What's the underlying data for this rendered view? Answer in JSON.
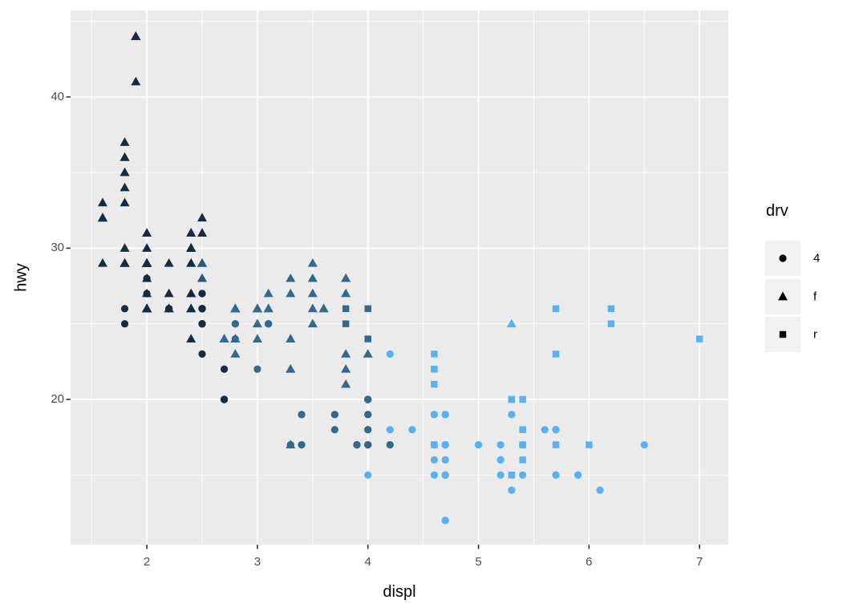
{
  "figure": {
    "background": "#FFFFFF",
    "panel_background": "#EBEBEB",
    "grid_color": "#FFFFFF",
    "tick_mark_color": "#333333",
    "axis_text_color": "#4D4D4D",
    "axis_title_color": "#000000",
    "legend_key_background": "#F2F2F2",
    "legend_glyph_color": "#000000"
  },
  "axes": {
    "x": {
      "title": "displ",
      "major_ticks": [
        "2",
        "3",
        "4",
        "5",
        "6",
        "7"
      ],
      "major_values": [
        2,
        3,
        4,
        5,
        6,
        7
      ],
      "minor_values": [
        1.5,
        2.5,
        3.5,
        4.5,
        5.5,
        6.5
      ]
    },
    "y": {
      "title": "hwy",
      "major_ticks": [
        "20",
        "30",
        "40"
      ],
      "major_values": [
        20,
        30,
        40
      ],
      "minor_values": [
        15,
        25,
        35,
        45
      ]
    }
  },
  "legend": {
    "title": "drv",
    "items": [
      {
        "label": "4",
        "shape": "circle"
      },
      {
        "label": "f",
        "shape": "triangle"
      },
      {
        "label": "r",
        "shape": "square"
      }
    ]
  },
  "chart_data": {
    "type": "scatter",
    "title": "",
    "xlabel": "displ",
    "ylabel": "hwy",
    "x_range": [
      1.31,
      7.26
    ],
    "y_range": [
      10.4,
      45.72
    ],
    "x_breaks": [
      2,
      3,
      4,
      5,
      6,
      7
    ],
    "y_breaks": [
      20,
      30,
      40
    ],
    "grid": true,
    "legend_position": "right",
    "point_format": "[displ, hwy, cyl]",
    "shape_mapping": {
      "variable": "drv",
      "values": {
        "4": "circle",
        "f": "triangle",
        "r": "square"
      }
    },
    "color_mapping": {
      "variable": "cyl",
      "type": "continuous-gradient",
      "low": "#132B43",
      "high": "#56B1F7",
      "stops": {
        "4": "#132B43",
        "5": "#2B5876",
        "6": "#33688F",
        "8": "#56B1F7"
      }
    },
    "series": [
      {
        "name": "4",
        "shape": "circle",
        "points": [
          [
            1.8,
            26,
            4
          ],
          [
            1.8,
            25,
            4
          ],
          [
            2.0,
            28,
            4
          ],
          [
            2.0,
            27,
            4
          ],
          [
            2.8,
            25,
            6
          ],
          [
            2.8,
            25,
            6
          ],
          [
            3.1,
            25,
            6
          ],
          [
            3.1,
            25,
            6
          ],
          [
            2.8,
            24,
            6
          ],
          [
            3.1,
            25,
            6
          ],
          [
            4.2,
            23,
            8
          ],
          [
            5.3,
            14,
            8
          ],
          [
            5.3,
            19,
            8
          ],
          [
            5.7,
            15,
            8
          ],
          [
            6.5,
            17,
            8
          ],
          [
            3.7,
            19,
            6
          ],
          [
            3.7,
            18,
            6
          ],
          [
            3.9,
            17,
            6
          ],
          [
            3.9,
            17,
            6
          ],
          [
            4.7,
            19,
            8
          ],
          [
            4.7,
            19,
            8
          ],
          [
            4.7,
            12,
            8
          ],
          [
            5.2,
            17,
            8
          ],
          [
            5.2,
            15,
            8
          ],
          [
            3.9,
            17,
            6
          ],
          [
            4.7,
            17,
            8
          ],
          [
            4.7,
            12,
            8
          ],
          [
            4.7,
            17,
            8
          ],
          [
            5.2,
            16,
            8
          ],
          [
            5.7,
            18,
            8
          ],
          [
            5.9,
            15,
            8
          ],
          [
            4.7,
            17,
            8
          ],
          [
            4.7,
            16,
            8
          ],
          [
            4.7,
            15,
            8
          ],
          [
            4.7,
            17,
            8
          ],
          [
            4.7,
            17,
            8
          ],
          [
            5.2,
            16,
            8
          ],
          [
            5.7,
            15,
            8
          ],
          [
            5.9,
            15,
            8
          ],
          [
            4.7,
            16,
            8
          ],
          [
            4.7,
            15,
            8
          ],
          [
            4.0,
            17,
            6
          ],
          [
            4.0,
            17,
            6
          ],
          [
            4.0,
            18,
            6
          ],
          [
            4.0,
            17,
            6
          ],
          [
            4.6,
            19,
            8
          ],
          [
            5.0,
            17,
            8
          ],
          [
            4.2,
            17,
            6
          ],
          [
            4.2,
            17,
            6
          ],
          [
            4.6,
            17,
            8
          ],
          [
            4.6,
            16,
            8
          ],
          [
            4.6,
            17,
            8
          ],
          [
            5.4,
            15,
            8
          ],
          [
            5.4,
            17,
            8
          ],
          [
            3.0,
            22,
            6
          ],
          [
            3.7,
            19,
            6
          ],
          [
            4.0,
            20,
            6
          ],
          [
            4.7,
            19,
            8
          ],
          [
            4.7,
            17,
            8
          ],
          [
            4.7,
            17,
            8
          ],
          [
            5.7,
            18,
            8
          ],
          [
            6.1,
            14,
            8
          ],
          [
            4.0,
            15,
            8
          ],
          [
            4.2,
            18,
            8
          ],
          [
            4.4,
            18,
            8
          ],
          [
            4.6,
            15,
            8
          ],
          [
            4.0,
            17,
            6
          ],
          [
            4.0,
            19,
            6
          ],
          [
            4.6,
            19,
            8
          ],
          [
            5.0,
            17,
            8
          ],
          [
            3.3,
            17,
            6
          ],
          [
            3.3,
            17,
            6
          ],
          [
            4.0,
            20,
            6
          ],
          [
            5.6,
            18,
            8
          ],
          [
            2.5,
            26,
            4
          ],
          [
            2.5,
            27,
            4
          ],
          [
            2.5,
            25,
            4
          ],
          [
            2.5,
            23,
            4
          ],
          [
            2.5,
            26,
            4
          ],
          [
            2.5,
            26,
            4
          ],
          [
            2.2,
            26,
            4
          ],
          [
            2.2,
            26,
            4
          ],
          [
            2.5,
            25,
            4
          ],
          [
            2.5,
            26,
            4
          ],
          [
            2.5,
            27,
            4
          ],
          [
            2.5,
            26,
            4
          ],
          [
            2.2,
            26,
            4
          ],
          [
            2.5,
            25,
            4
          ],
          [
            2.7,
            20,
            4
          ],
          [
            2.7,
            20,
            4
          ],
          [
            3.4,
            19,
            6
          ],
          [
            3.4,
            17,
            6
          ],
          [
            4.0,
            20,
            6
          ],
          [
            4.7,
            17,
            8
          ],
          [
            4.7,
            15,
            8
          ],
          [
            5.7,
            18,
            8
          ],
          [
            2.7,
            22,
            4
          ],
          [
            2.7,
            20,
            4
          ],
          [
            3.4,
            19,
            6
          ],
          [
            3.4,
            17,
            6
          ],
          [
            4.0,
            20,
            6
          ],
          [
            4.0,
            19,
            6
          ],
          [
            4.0,
            18,
            6
          ]
        ]
      },
      {
        "name": "f",
        "shape": "triangle",
        "points": [
          [
            1.8,
            29,
            4
          ],
          [
            1.8,
            29,
            4
          ],
          [
            2.0,
            31,
            4
          ],
          [
            2.0,
            30,
            4
          ],
          [
            2.8,
            26,
            6
          ],
          [
            2.8,
            26,
            6
          ],
          [
            3.1,
            27,
            6
          ],
          [
            2.4,
            30,
            4
          ],
          [
            2.4,
            27,
            4
          ],
          [
            3.1,
            26,
            6
          ],
          [
            3.5,
            29,
            6
          ],
          [
            3.6,
            26,
            6
          ],
          [
            2.4,
            24,
            4
          ],
          [
            3.0,
            24,
            6
          ],
          [
            3.3,
            24,
            6
          ],
          [
            3.3,
            24,
            6
          ],
          [
            3.3,
            22,
            6
          ],
          [
            3.3,
            22,
            6
          ],
          [
            3.3,
            17,
            6
          ],
          [
            3.8,
            23,
            6
          ],
          [
            3.8,
            22,
            6
          ],
          [
            3.8,
            21,
            6
          ],
          [
            4.0,
            23,
            6
          ],
          [
            1.6,
            33,
            4
          ],
          [
            1.6,
            32,
            4
          ],
          [
            1.6,
            32,
            4
          ],
          [
            1.6,
            29,
            4
          ],
          [
            1.6,
            32,
            4
          ],
          [
            1.8,
            34,
            4
          ],
          [
            1.8,
            36,
            4
          ],
          [
            1.8,
            36,
            4
          ],
          [
            2.0,
            29,
            4
          ],
          [
            2.4,
            26,
            4
          ],
          [
            2.4,
            27,
            4
          ],
          [
            2.4,
            30,
            4
          ],
          [
            2.4,
            31,
            4
          ],
          [
            2.5,
            28,
            6
          ],
          [
            2.5,
            29,
            6
          ],
          [
            3.3,
            28,
            6
          ],
          [
            2.0,
            26,
            4
          ],
          [
            2.0,
            27,
            4
          ],
          [
            2.0,
            29,
            4
          ],
          [
            2.0,
            29,
            4
          ],
          [
            2.7,
            24,
            6
          ],
          [
            2.7,
            24,
            6
          ],
          [
            2.7,
            24,
            6
          ],
          [
            2.4,
            29,
            4
          ],
          [
            2.4,
            29,
            4
          ],
          [
            2.5,
            31,
            4
          ],
          [
            2.5,
            32,
            4
          ],
          [
            3.5,
            26,
            6
          ],
          [
            3.5,
            27,
            6
          ],
          [
            3.0,
            26,
            6
          ],
          [
            3.0,
            25,
            6
          ],
          [
            3.5,
            25,
            6
          ],
          [
            3.1,
            26,
            6
          ],
          [
            3.8,
            28,
            6
          ],
          [
            3.8,
            28,
            6
          ],
          [
            3.8,
            27,
            6
          ],
          [
            5.3,
            25,
            8
          ],
          [
            2.2,
            26,
            4
          ],
          [
            2.2,
            27,
            4
          ],
          [
            2.4,
            30,
            4
          ],
          [
            2.4,
            31,
            4
          ],
          [
            3.0,
            26,
            6
          ],
          [
            3.0,
            26,
            6
          ],
          [
            3.5,
            28,
            6
          ],
          [
            2.2,
            29,
            4
          ],
          [
            2.2,
            26,
            4
          ],
          [
            2.4,
            26,
            4
          ],
          [
            2.4,
            30,
            4
          ],
          [
            3.0,
            26,
            6
          ],
          [
            3.0,
            26,
            6
          ],
          [
            3.3,
            27,
            6
          ],
          [
            1.8,
            30,
            4
          ],
          [
            1.8,
            33,
            4
          ],
          [
            1.8,
            35,
            4
          ],
          [
            1.8,
            35,
            4
          ],
          [
            1.8,
            37,
            4
          ],
          [
            2.0,
            26,
            4
          ],
          [
            2.0,
            29,
            4
          ],
          [
            2.0,
            29,
            4
          ],
          [
            2.0,
            26,
            4
          ],
          [
            2.8,
            24,
            6
          ],
          [
            1.9,
            44,
            4
          ],
          [
            2.0,
            29,
            4
          ],
          [
            2.0,
            26,
            4
          ],
          [
            2.0,
            29,
            4
          ],
          [
            2.0,
            26,
            4
          ],
          [
            2.5,
            29,
            5
          ],
          [
            2.8,
            23,
            6
          ],
          [
            2.8,
            24,
            6
          ],
          [
            2.8,
            24,
            6
          ],
          [
            1.9,
            44,
            4
          ],
          [
            1.9,
            41,
            4
          ],
          [
            2.0,
            29,
            4
          ],
          [
            2.0,
            26,
            4
          ],
          [
            2.5,
            28,
            5
          ],
          [
            2.5,
            29,
            5
          ],
          [
            1.8,
            29,
            4
          ],
          [
            1.8,
            29,
            4
          ],
          [
            2.0,
            28,
            4
          ],
          [
            2.0,
            29,
            4
          ],
          [
            2.8,
            26,
            6
          ],
          [
            2.8,
            26,
            6
          ],
          [
            3.6,
            26,
            6
          ]
        ]
      },
      {
        "name": "r",
        "shape": "square",
        "points": [
          [
            5.3,
            20,
            8
          ],
          [
            5.3,
            15,
            8
          ],
          [
            5.3,
            20,
            8
          ],
          [
            5.7,
            17,
            8
          ],
          [
            6.0,
            17,
            8
          ],
          [
            5.7,
            26,
            8
          ],
          [
            5.7,
            23,
            8
          ],
          [
            6.2,
            26,
            8
          ],
          [
            6.2,
            25,
            8
          ],
          [
            7.0,
            24,
            8
          ],
          [
            4.6,
            17,
            8
          ],
          [
            5.4,
            17,
            8
          ],
          [
            5.4,
            18,
            8
          ],
          [
            5.4,
            16,
            8
          ],
          [
            5.4,
            17,
            8
          ],
          [
            5.4,
            18,
            8
          ],
          [
            3.8,
            26,
            6
          ],
          [
            3.8,
            25,
            6
          ],
          [
            4.0,
            26,
            6
          ],
          [
            4.0,
            24,
            6
          ],
          [
            4.6,
            23,
            8
          ],
          [
            4.6,
            22,
            8
          ],
          [
            4.6,
            22,
            8
          ],
          [
            4.6,
            21,
            8
          ],
          [
            5.4,
            20,
            8
          ]
        ]
      }
    ]
  }
}
